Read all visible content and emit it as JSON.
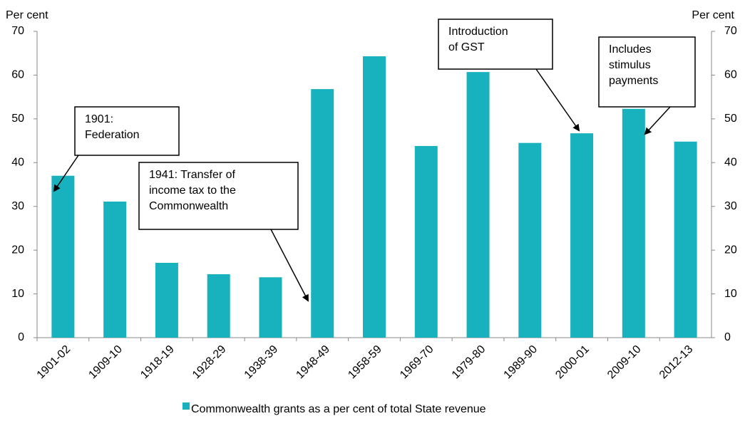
{
  "chart_data": {
    "type": "bar",
    "y_label": "Per cent",
    "y2_label": "Per cent",
    "categories": [
      "1901-02",
      "1909-10",
      "1918-19",
      "1928-29",
      "1938-39",
      "1948-49",
      "1958-59",
      "1969-70",
      "1979-80",
      "1989-90",
      "2000-01",
      "2009-10",
      "2012-13"
    ],
    "series": [
      {
        "name": "Commonwealth grants as a per cent of total State revenue",
        "color": "#17b2bd",
        "values": [
          37.0,
          31.1,
          17.1,
          14.5,
          13.8,
          56.8,
          64.3,
          43.8,
          60.7,
          44.5,
          46.7,
          52.3,
          44.8
        ]
      }
    ],
    "ylim": [
      0,
      70
    ],
    "yticks": [
      0,
      10,
      20,
      30,
      40,
      50,
      60,
      70
    ],
    "y2lim": [
      0,
      70
    ],
    "y2ticks": [
      0,
      10,
      20,
      30,
      40,
      50,
      60,
      70
    ],
    "annotations": [
      {
        "lines": [
          "1901:",
          "Federation"
        ]
      },
      {
        "lines": [
          "1941: Transfer of",
          "income tax to the",
          "Commonwealth"
        ]
      },
      {
        "lines": [
          "Introduction",
          "of GST"
        ]
      },
      {
        "lines": [
          "Includes",
          "stimulus",
          "payments"
        ]
      }
    ]
  }
}
